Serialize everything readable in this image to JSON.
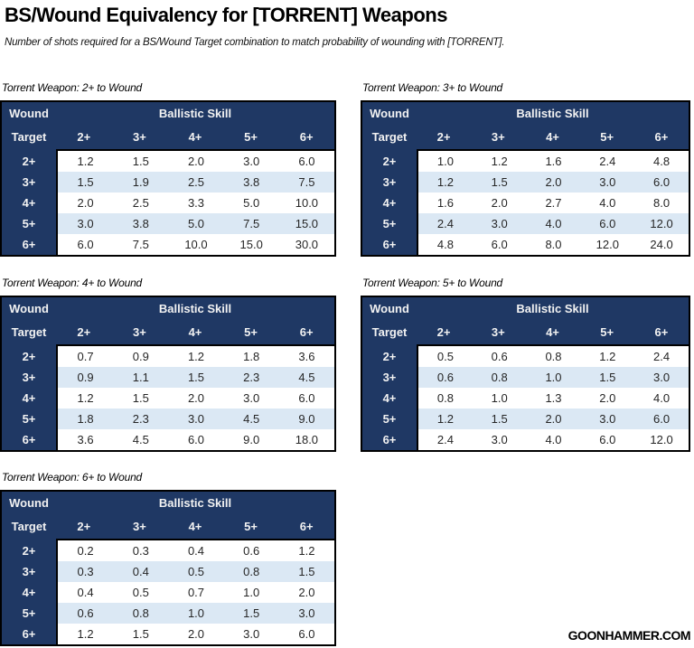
{
  "page": {
    "title": "BS/Wound Equivalency for [TORRENT] Weapons",
    "subtitle": "Number of shots required for a BS/Wound Target combination to match probability of wounding with [TORRENT].",
    "footer": "GOONHAMMER.COM"
  },
  "colors": {
    "header_navy": "#1F3864",
    "stripe_blue": "#DBE8F4",
    "border_black": "#000000",
    "header_text": "#F2F2F2",
    "cell_text": "#262626"
  },
  "header": {
    "wound": "Wound",
    "target": "Target",
    "group": "Ballistic Skill",
    "columns": [
      "2+",
      "3+",
      "4+",
      "5+",
      "6+"
    ]
  },
  "tables": [
    {
      "label": "Torrent Weapon: 2+ to Wound",
      "rows": [
        {
          "target": "2+",
          "cells": [
            "1.2",
            "1.5",
            "2.0",
            "3.0",
            "6.0"
          ]
        },
        {
          "target": "3+",
          "cells": [
            "1.5",
            "1.9",
            "2.5",
            "3.8",
            "7.5"
          ]
        },
        {
          "target": "4+",
          "cells": [
            "2.0",
            "2.5",
            "3.3",
            "5.0",
            "10.0"
          ]
        },
        {
          "target": "5+",
          "cells": [
            "3.0",
            "3.8",
            "5.0",
            "7.5",
            "15.0"
          ]
        },
        {
          "target": "6+",
          "cells": [
            "6.0",
            "7.5",
            "10.0",
            "15.0",
            "30.0"
          ]
        }
      ]
    },
    {
      "label": "Torrent Weapon: 3+ to Wound",
      "rows": [
        {
          "target": "2+",
          "cells": [
            "1.0",
            "1.2",
            "1.6",
            "2.4",
            "4.8"
          ]
        },
        {
          "target": "3+",
          "cells": [
            "1.2",
            "1.5",
            "2.0",
            "3.0",
            "6.0"
          ]
        },
        {
          "target": "4+",
          "cells": [
            "1.6",
            "2.0",
            "2.7",
            "4.0",
            "8.0"
          ]
        },
        {
          "target": "5+",
          "cells": [
            "2.4",
            "3.0",
            "4.0",
            "6.0",
            "12.0"
          ]
        },
        {
          "target": "6+",
          "cells": [
            "4.8",
            "6.0",
            "8.0",
            "12.0",
            "24.0"
          ]
        }
      ]
    },
    {
      "label": "Torrent Weapon: 4+ to Wound",
      "rows": [
        {
          "target": "2+",
          "cells": [
            "0.7",
            "0.9",
            "1.2",
            "1.8",
            "3.6"
          ]
        },
        {
          "target": "3+",
          "cells": [
            "0.9",
            "1.1",
            "1.5",
            "2.3",
            "4.5"
          ]
        },
        {
          "target": "4+",
          "cells": [
            "1.2",
            "1.5",
            "2.0",
            "3.0",
            "6.0"
          ]
        },
        {
          "target": "5+",
          "cells": [
            "1.8",
            "2.3",
            "3.0",
            "4.5",
            "9.0"
          ]
        },
        {
          "target": "6+",
          "cells": [
            "3.6",
            "4.5",
            "6.0",
            "9.0",
            "18.0"
          ]
        }
      ]
    },
    {
      "label": "Torrent Weapon: 5+ to Wound",
      "rows": [
        {
          "target": "2+",
          "cells": [
            "0.5",
            "0.6",
            "0.8",
            "1.2",
            "2.4"
          ]
        },
        {
          "target": "3+",
          "cells": [
            "0.6",
            "0.8",
            "1.0",
            "1.5",
            "3.0"
          ]
        },
        {
          "target": "4+",
          "cells": [
            "0.8",
            "1.0",
            "1.3",
            "2.0",
            "4.0"
          ]
        },
        {
          "target": "5+",
          "cells": [
            "1.2",
            "1.5",
            "2.0",
            "3.0",
            "6.0"
          ]
        },
        {
          "target": "6+",
          "cells": [
            "2.4",
            "3.0",
            "4.0",
            "6.0",
            "12.0"
          ]
        }
      ]
    },
    {
      "label": "Torrent Weapon: 6+ to Wound",
      "rows": [
        {
          "target": "2+",
          "cells": [
            "0.2",
            "0.3",
            "0.4",
            "0.6",
            "1.2"
          ]
        },
        {
          "target": "3+",
          "cells": [
            "0.3",
            "0.4",
            "0.5",
            "0.8",
            "1.5"
          ]
        },
        {
          "target": "4+",
          "cells": [
            "0.4",
            "0.5",
            "0.7",
            "1.0",
            "2.0"
          ]
        },
        {
          "target": "5+",
          "cells": [
            "0.6",
            "0.8",
            "1.0",
            "1.5",
            "3.0"
          ]
        },
        {
          "target": "6+",
          "cells": [
            "1.2",
            "1.5",
            "2.0",
            "3.0",
            "6.0"
          ]
        }
      ]
    }
  ],
  "chart_data": [
    {
      "type": "table",
      "title": "Torrent Weapon: 2+ to Wound",
      "row_axis_label": "Wound Target",
      "col_axis_label": "Ballistic Skill",
      "columns": [
        "2+",
        "3+",
        "4+",
        "5+",
        "6+"
      ],
      "row_labels": [
        "2+",
        "3+",
        "4+",
        "5+",
        "6+"
      ],
      "values": [
        [
          1.2,
          1.5,
          2.0,
          3.0,
          6.0
        ],
        [
          1.5,
          1.9,
          2.5,
          3.8,
          7.5
        ],
        [
          2.0,
          2.5,
          3.3,
          5.0,
          10.0
        ],
        [
          3.0,
          3.8,
          5.0,
          7.5,
          15.0
        ],
        [
          6.0,
          7.5,
          10.0,
          15.0,
          30.0
        ]
      ]
    },
    {
      "type": "table",
      "title": "Torrent Weapon: 3+ to Wound",
      "row_axis_label": "Wound Target",
      "col_axis_label": "Ballistic Skill",
      "columns": [
        "2+",
        "3+",
        "4+",
        "5+",
        "6+"
      ],
      "row_labels": [
        "2+",
        "3+",
        "4+",
        "5+",
        "6+"
      ],
      "values": [
        [
          1.0,
          1.2,
          1.6,
          2.4,
          4.8
        ],
        [
          1.2,
          1.5,
          2.0,
          3.0,
          6.0
        ],
        [
          1.6,
          2.0,
          2.7,
          4.0,
          8.0
        ],
        [
          2.4,
          3.0,
          4.0,
          6.0,
          12.0
        ],
        [
          4.8,
          6.0,
          8.0,
          12.0,
          24.0
        ]
      ]
    },
    {
      "type": "table",
      "title": "Torrent Weapon: 4+ to Wound",
      "row_axis_label": "Wound Target",
      "col_axis_label": "Ballistic Skill",
      "columns": [
        "2+",
        "3+",
        "4+",
        "5+",
        "6+"
      ],
      "row_labels": [
        "2+",
        "3+",
        "4+",
        "5+",
        "6+"
      ],
      "values": [
        [
          0.7,
          0.9,
          1.2,
          1.8,
          3.6
        ],
        [
          0.9,
          1.1,
          1.5,
          2.3,
          4.5
        ],
        [
          1.2,
          1.5,
          2.0,
          3.0,
          6.0
        ],
        [
          1.8,
          2.3,
          3.0,
          4.5,
          9.0
        ],
        [
          3.6,
          4.5,
          6.0,
          9.0,
          18.0
        ]
      ]
    },
    {
      "type": "table",
      "title": "Torrent Weapon: 5+ to Wound",
      "row_axis_label": "Wound Target",
      "col_axis_label": "Ballistic Skill",
      "columns": [
        "2+",
        "3+",
        "4+",
        "5+",
        "6+"
      ],
      "row_labels": [
        "2+",
        "3+",
        "4+",
        "5+",
        "6+"
      ],
      "values": [
        [
          0.5,
          0.6,
          0.8,
          1.2,
          2.4
        ],
        [
          0.6,
          0.8,
          1.0,
          1.5,
          3.0
        ],
        [
          0.8,
          1.0,
          1.3,
          2.0,
          4.0
        ],
        [
          1.2,
          1.5,
          2.0,
          3.0,
          6.0
        ],
        [
          2.4,
          3.0,
          4.0,
          6.0,
          12.0
        ]
      ]
    },
    {
      "type": "table",
      "title": "Torrent Weapon: 6+ to Wound",
      "row_axis_label": "Wound Target",
      "col_axis_label": "Ballistic Skill",
      "columns": [
        "2+",
        "3+",
        "4+",
        "5+",
        "6+"
      ],
      "row_labels": [
        "2+",
        "3+",
        "4+",
        "5+",
        "6+"
      ],
      "values": [
        [
          0.2,
          0.3,
          0.4,
          0.6,
          1.2
        ],
        [
          0.3,
          0.4,
          0.5,
          0.8,
          1.5
        ],
        [
          0.4,
          0.5,
          0.7,
          1.0,
          2.0
        ],
        [
          0.6,
          0.8,
          1.0,
          1.5,
          3.0
        ],
        [
          1.2,
          1.5,
          2.0,
          3.0,
          6.0
        ]
      ]
    }
  ]
}
